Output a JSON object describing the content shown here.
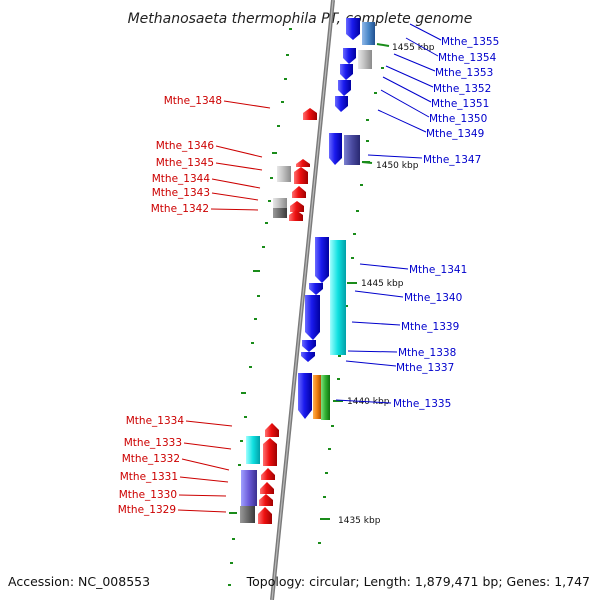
{
  "title": "Methanosaeta thermophila PT, complete genome",
  "footer": {
    "accession": "Accession: NC_008553",
    "topology": "Topology: circular; Length: 1,879,471 bp; Genes: 1,747"
  },
  "ticks": [
    "1455 kbp",
    "1450 kbp",
    "1445 kbp",
    "1440 kbp",
    "1435 kbp"
  ],
  "genes_left": [
    "Mthe_1348",
    "Mthe_1346",
    "Mthe_1345",
    "Mthe_1344",
    "Mthe_1343",
    "Mthe_1342",
    "Mthe_1334",
    "Mthe_1333",
    "Mthe_1332",
    "Mthe_1331",
    "Mthe_1330",
    "Mthe_1329"
  ],
  "genes_right": [
    "Mthe_1355",
    "Mthe_1354",
    "Mthe_1353",
    "Mthe_1352",
    "Mthe_1351",
    "Mthe_1350",
    "Mthe_1349",
    "Mthe_1347",
    "Mthe_1341",
    "Mthe_1340",
    "Mthe_1339",
    "Mthe_1338",
    "Mthe_1337",
    "Mthe_1335"
  ],
  "colors": {
    "forward_strand": "#1010e0",
    "reverse_strand": "#ee1111",
    "backbone": "#888888",
    "gc_ticks": "#1a8c1a"
  }
}
